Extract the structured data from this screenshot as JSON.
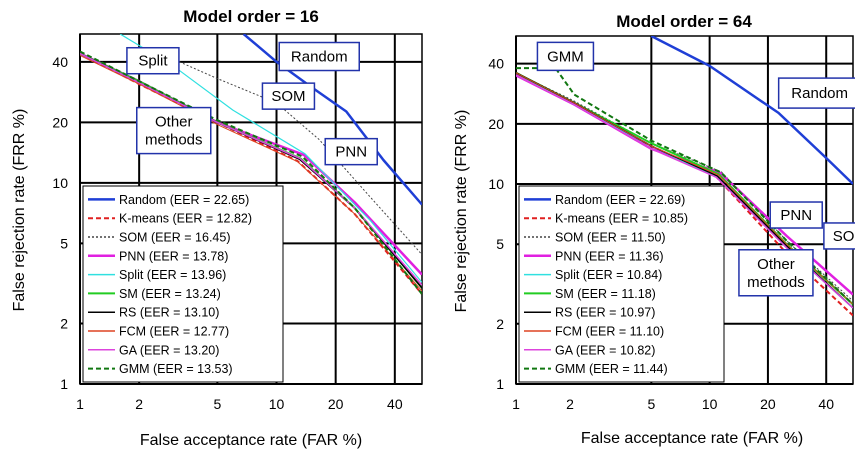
{
  "chart_data": [
    {
      "type": "line",
      "title": "Model order = 16",
      "xlabel": "False acceptance rate (FAR %)",
      "ylabel": "False rejection rate (FRR %)",
      "xscale": "log",
      "yscale": "log",
      "xlim": [
        1,
        55
      ],
      "ylim": [
        1,
        55
      ],
      "xticks": [
        1,
        2,
        5,
        10,
        20,
        40
      ],
      "yticks": [
        1,
        2,
        5,
        10,
        20,
        40
      ],
      "grid": true,
      "legend_position": "bottom-left",
      "series": [
        {
          "name": "Random (EER = 22.65)",
          "color": "#1f3fd6",
          "width": 2.5,
          "dash": "",
          "x": [
            6.8,
            10,
            15,
            22.65,
            35,
            55
          ],
          "y": [
            55,
            40,
            30,
            22.65,
            13,
            7.8
          ]
        },
        {
          "name": "K-means (EER = 12.82)",
          "color": "#e02020",
          "width": 2,
          "dash": "5,3",
          "x": [
            1,
            2,
            5,
            12.82,
            25,
            55
          ],
          "y": [
            44,
            31,
            20,
            12.82,
            7,
            2.8
          ]
        },
        {
          "name": "SOM (EER = 16.45)",
          "color": "#444444",
          "width": 1,
          "dash": "2,2",
          "x": [
            3.2,
            5,
            10,
            16.45,
            30,
            55
          ],
          "y": [
            40,
            33,
            25,
            16.45,
            8.5,
            4.4
          ]
        },
        {
          "name": "PNN (EER = 13.78)",
          "color": "#e020e0",
          "width": 2.5,
          "dash": "",
          "x": [
            1,
            2,
            5,
            13.78,
            25,
            55
          ],
          "y": [
            44,
            32,
            20,
            13.78,
            8,
            3.5
          ]
        },
        {
          "name": "Split (EER = 13.96)",
          "color": "#30e0e0",
          "width": 1.2,
          "dash": "",
          "x": [
            1.6,
            3,
            6,
            13.96,
            30,
            55
          ],
          "y": [
            55,
            38,
            23,
            13.96,
            6.5,
            3.2
          ]
        },
        {
          "name": "SM (EER = 13.24)",
          "color": "#22cc22",
          "width": 2,
          "dash": "",
          "x": [
            1,
            2,
            5,
            13.24,
            25,
            55
          ],
          "y": [
            44,
            32,
            20,
            13.24,
            7.5,
            3
          ]
        },
        {
          "name": "RS (EER = 13.10)",
          "color": "#000000",
          "width": 1.5,
          "dash": "",
          "x": [
            1,
            2,
            5,
            13.1,
            25,
            55
          ],
          "y": [
            44,
            31.5,
            20,
            13.1,
            7.5,
            3
          ]
        },
        {
          "name": "FCM (EER = 12.77)",
          "color": "#dd4422",
          "width": 1,
          "dash": "",
          "x": [
            1,
            2,
            5,
            12.77,
            25,
            55
          ],
          "y": [
            43,
            31,
            19.5,
            12.77,
            7,
            2.9
          ]
        },
        {
          "name": "GA (EER = 13.20)",
          "color": "#dd44dd",
          "width": 1.5,
          "dash": "",
          "x": [
            1,
            2,
            5,
            13.2,
            25,
            55
          ],
          "y": [
            44,
            31.5,
            20,
            13.2,
            7.5,
            3.1
          ]
        },
        {
          "name": "GMM (EER = 13.53)",
          "color": "#117711",
          "width": 2,
          "dash": "5,3",
          "x": [
            1,
            2,
            5,
            13.53,
            25,
            55
          ],
          "y": [
            45,
            32,
            20.5,
            13.53,
            7.5,
            2.8
          ]
        }
      ],
      "annotations": [
        {
          "lines": [
            "Split"
          ],
          "at": [
            2.35,
            40.5
          ],
          "box_w": 52,
          "box_h": 26
        },
        {
          "lines": [
            "Random"
          ],
          "at": [
            16.5,
            42.5
          ],
          "box_w": 80,
          "box_h": 28
        },
        {
          "lines": [
            "SOM"
          ],
          "at": [
            11.5,
            27
          ],
          "box_w": 52,
          "box_h": 26
        },
        {
          "lines": [
            "Other",
            "methods"
          ],
          "at": [
            3,
            18.2
          ],
          "box_w": 74,
          "box_h": 46
        },
        {
          "lines": [
            "PNN"
          ],
          "at": [
            24,
            14.3
          ],
          "box_w": 52,
          "box_h": 26
        }
      ]
    },
    {
      "type": "line",
      "title": "Model order = 64",
      "xlabel": "False acceptance rate (FAR %)",
      "ylabel": "False rejection rate (FRR %)",
      "xscale": "log",
      "yscale": "log",
      "xlim": [
        1,
        55
      ],
      "ylim": [
        1,
        55
      ],
      "xticks": [
        1,
        5,
        10,
        20,
        40
      ],
      "xtick_labels": [
        "1",
        "2",
        "5",
        "10",
        "20",
        "40"
      ],
      "xtick_label_values": [
        1,
        1.9,
        5,
        10,
        20,
        40
      ],
      "yticks": [
        1,
        2,
        5,
        10,
        20,
        40
      ],
      "grid": true,
      "legend_position": "bottom-left",
      "series": [
        {
          "name": "Random (EER = 22.69)",
          "color": "#1f3fd6",
          "width": 2.5,
          "dash": "",
          "x": [
            5,
            10,
            22.69,
            40,
            55
          ],
          "y": [
            55,
            39,
            22.69,
            13.5,
            10
          ]
        },
        {
          "name": "K-means (EER = 10.85)",
          "color": "#e02020",
          "width": 2,
          "dash": "5,3",
          "x": [
            1,
            2,
            5,
            10.85,
            25,
            55
          ],
          "y": [
            36,
            25,
            15.5,
            10.85,
            4.5,
            2.2
          ]
        },
        {
          "name": "SOM (EER = 11.50)",
          "color": "#444444",
          "width": 1,
          "dash": "2,2",
          "x": [
            1,
            2,
            5,
            11.5,
            25,
            55
          ],
          "y": [
            36,
            26,
            16,
            11.5,
            5.2,
            2.6
          ]
        },
        {
          "name": "PNN (EER = 11.36)",
          "color": "#e020e0",
          "width": 2.5,
          "dash": "",
          "x": [
            1,
            2,
            5,
            11.36,
            25,
            55
          ],
          "y": [
            35,
            25,
            15,
            11.36,
            5.5,
            2.8
          ]
        },
        {
          "name": "Split (EER = 10.84)",
          "color": "#30e0e0",
          "width": 1.5,
          "dash": "",
          "x": [
            1,
            2,
            5,
            10.84,
            25,
            55
          ],
          "y": [
            36,
            25,
            15.5,
            10.84,
            4.8,
            2.4
          ]
        },
        {
          "name": "SM (EER = 11.18)",
          "color": "#22cc22",
          "width": 2,
          "dash": "",
          "x": [
            1,
            2,
            5,
            11.18,
            25,
            55
          ],
          "y": [
            36,
            25.5,
            16,
            11.18,
            5,
            2.5
          ]
        },
        {
          "name": "RS (EER = 10.97)",
          "color": "#000000",
          "width": 1.5,
          "dash": "",
          "x": [
            1,
            2,
            5,
            10.97,
            25,
            55
          ],
          "y": [
            36,
            25.5,
            15.5,
            10.97,
            4.9,
            2.4
          ]
        },
        {
          "name": "FCM (EER = 11.10)",
          "color": "#dd4422",
          "width": 1,
          "dash": "",
          "x": [
            1,
            2,
            5,
            11.1,
            25,
            55
          ],
          "y": [
            36,
            25.5,
            15.5,
            11.1,
            5,
            2.5
          ]
        },
        {
          "name": "GA (EER = 10.82)",
          "color": "#dd44dd",
          "width": 1.5,
          "dash": "",
          "x": [
            1,
            2,
            5,
            10.82,
            25,
            55
          ],
          "y": [
            35,
            25,
            15,
            10.82,
            4.8,
            2.4
          ]
        },
        {
          "name": "GMM (EER = 11.44)",
          "color": "#117711",
          "width": 2,
          "dash": "5,3",
          "x": [
            1,
            1.6,
            2,
            5,
            11.44,
            25,
            55
          ],
          "y": [
            38,
            38,
            28,
            16.5,
            11.44,
            5.2,
            2.5
          ]
        }
      ],
      "annotations": [
        {
          "lines": [
            "GMM"
          ],
          "at": [
            1.8,
            43.5
          ],
          "box_w": 56,
          "box_h": 28
        },
        {
          "lines": [
            "Random"
          ],
          "at": [
            37,
            28.5
          ],
          "box_w": 82,
          "box_h": 30
        },
        {
          "lines": [
            "PNN"
          ],
          "at": [
            28,
            7
          ],
          "box_w": 52,
          "box_h": 26
        },
        {
          "lines": [
            "SOM"
          ],
          "at": [
            53,
            5.5
          ],
          "box_w": 52,
          "box_h": 26
        },
        {
          "lines": [
            "Other",
            "methods"
          ],
          "at": [
            22,
            3.6
          ],
          "box_w": 74,
          "box_h": 46
        }
      ]
    }
  ]
}
